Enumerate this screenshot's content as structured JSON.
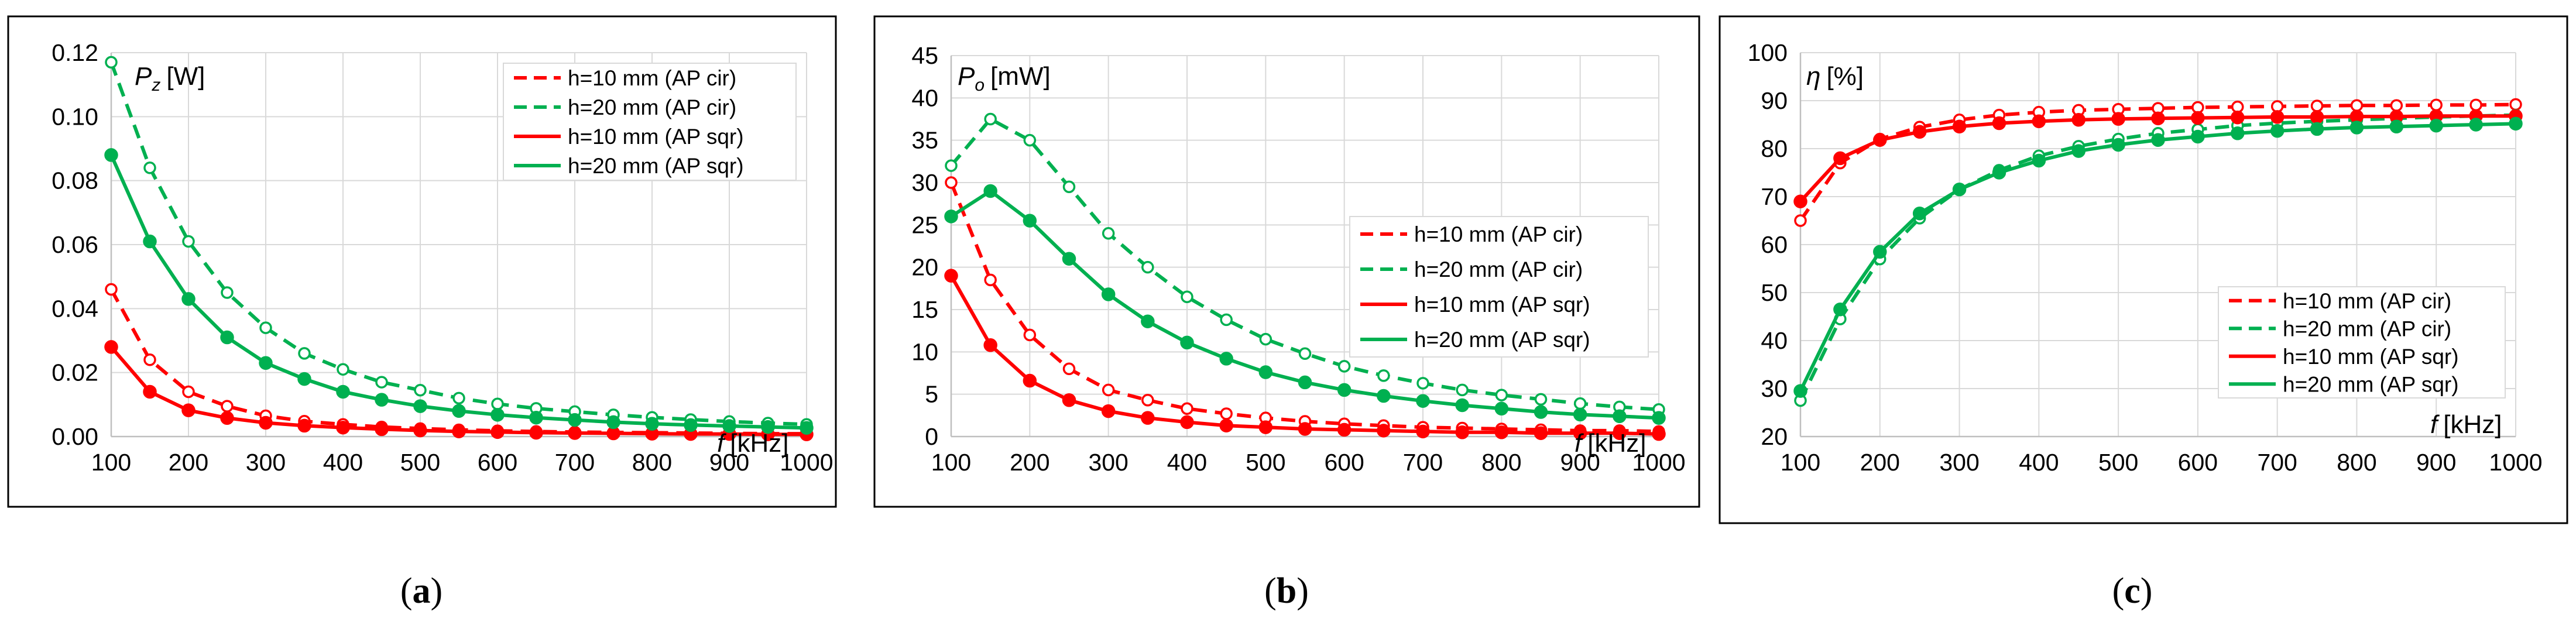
{
  "colors": {
    "red": "#ff0000",
    "green": "#00b050",
    "grid": "#d9d9d9",
    "frame": "#000000"
  },
  "chart_data": [
    {
      "id": "a",
      "type": "line",
      "caption": "(a)",
      "caption_parts": [
        "(",
        "a",
        ")"
      ],
      "ylabel": {
        "symbol": "P",
        "sub": "z",
        "unit": "[W]"
      },
      "xlabel": {
        "symbol": "f",
        "unit": "[kHz]"
      },
      "x_ticks": [
        "100",
        "200",
        "300",
        "400",
        "500",
        "600",
        "700",
        "800",
        "900",
        "1000"
      ],
      "y_ticks": [
        "0.00",
        "0.02",
        "0.04",
        "0.06",
        "0.08",
        "0.10",
        "0.12"
      ],
      "xlim": [
        100,
        1000
      ],
      "ylim": [
        0,
        0.12
      ],
      "legend_position": "top-right",
      "x": [
        100,
        150,
        200,
        250,
        300,
        350,
        400,
        450,
        500,
        550,
        600,
        650,
        700,
        750,
        800,
        850,
        900,
        950,
        1000
      ],
      "series": [
        {
          "name": "h=10 mm (AP cir)",
          "color": "red",
          "style": "dashed",
          "marker": "open",
          "values": [
            0.046,
            0.024,
            0.014,
            0.0095,
            0.0065,
            0.0048,
            0.0038,
            0.003,
            0.0025,
            0.0021,
            0.0018,
            0.0016,
            0.0014,
            0.0013,
            0.0012,
            0.0011,
            0.001,
            0.0009,
            0.0009
          ]
        },
        {
          "name": "h=20 mm (AP cir)",
          "color": "green",
          "style": "dashed",
          "marker": "open",
          "values": [
            0.117,
            0.084,
            0.061,
            0.045,
            0.034,
            0.026,
            0.021,
            0.017,
            0.0145,
            0.012,
            0.0102,
            0.0088,
            0.0078,
            0.0068,
            0.006,
            0.0053,
            0.0047,
            0.0042,
            0.0038
          ]
        },
        {
          "name": "h=10 mm (AP sqr)",
          "color": "red",
          "style": "solid",
          "marker": "filled",
          "values": [
            0.028,
            0.014,
            0.0082,
            0.0058,
            0.0043,
            0.0034,
            0.0028,
            0.0023,
            0.0019,
            0.0016,
            0.0014,
            0.0012,
            0.0011,
            0.001,
            0.0009,
            0.0008,
            0.0008,
            0.0007,
            0.0007
          ]
        },
        {
          "name": "h=20 mm (AP sqr)",
          "color": "green",
          "style": "solid",
          "marker": "filled",
          "values": [
            0.088,
            0.061,
            0.043,
            0.031,
            0.023,
            0.018,
            0.014,
            0.0115,
            0.0095,
            0.008,
            0.0068,
            0.0059,
            0.0052,
            0.0045,
            0.004,
            0.0036,
            0.0033,
            0.003,
            0.0027
          ]
        }
      ]
    },
    {
      "id": "b",
      "type": "line",
      "caption": "(b)",
      "caption_parts": [
        "(",
        "b",
        ")"
      ],
      "ylabel": {
        "symbol": "P",
        "sub": "o",
        "unit": "[mW]"
      },
      "xlabel": {
        "symbol": "f",
        "unit": "[kHz]"
      },
      "x_ticks": [
        "100",
        "200",
        "300",
        "400",
        "500",
        "600",
        "700",
        "800",
        "900",
        "1000"
      ],
      "y_ticks": [
        "0",
        "5",
        "10",
        "15",
        "20",
        "25",
        "30",
        "35",
        "40",
        "45"
      ],
      "xlim": [
        100,
        1000
      ],
      "ylim": [
        0,
        45
      ],
      "legend_position": "center-right",
      "x": [
        100,
        150,
        200,
        250,
        300,
        350,
        400,
        450,
        500,
        550,
        600,
        650,
        700,
        750,
        800,
        850,
        900,
        950,
        1000
      ],
      "series": [
        {
          "name": "h=10 mm (AP cir)",
          "color": "red",
          "style": "dashed",
          "marker": "open",
          "values": [
            30,
            18.5,
            12,
            8,
            5.5,
            4.3,
            3.3,
            2.7,
            2.2,
            1.8,
            1.5,
            1.3,
            1.1,
            1,
            0.9,
            0.8,
            0.7,
            0.7,
            0.6
          ]
        },
        {
          "name": "h=20 mm (AP cir)",
          "color": "green",
          "style": "dashed",
          "marker": "open",
          "values": [
            32,
            37.5,
            35,
            29.5,
            24,
            20,
            16.5,
            13.8,
            11.5,
            9.8,
            8.3,
            7.2,
            6.3,
            5.5,
            4.9,
            4.4,
            3.9,
            3.5,
            3.2
          ]
        },
        {
          "name": "h=10 mm (AP sqr)",
          "color": "red",
          "style": "solid",
          "marker": "filled",
          "values": [
            19,
            10.8,
            6.6,
            4.3,
            3,
            2.2,
            1.7,
            1.3,
            1.1,
            0.9,
            0.8,
            0.7,
            0.6,
            0.5,
            0.5,
            0.4,
            0.4,
            0.4,
            0.3
          ]
        },
        {
          "name": "h=20 mm (AP sqr)",
          "color": "green",
          "style": "solid",
          "marker": "filled",
          "values": [
            26,
            29,
            25.5,
            21,
            16.8,
            13.6,
            11.1,
            9.2,
            7.6,
            6.4,
            5.5,
            4.8,
            4.2,
            3.7,
            3.3,
            2.9,
            2.6,
            2.4,
            2.2
          ]
        }
      ]
    },
    {
      "id": "c",
      "type": "line",
      "caption": "(c)",
      "caption_parts": [
        "(",
        "c",
        ")"
      ],
      "ylabel": {
        "symbol": "η",
        "sub": "",
        "unit": "[%]"
      },
      "xlabel": {
        "symbol": "f",
        "unit": "[kHz]"
      },
      "x_ticks": [
        "100",
        "200",
        "300",
        "400",
        "500",
        "600",
        "700",
        "800",
        "900",
        "1000"
      ],
      "y_ticks": [
        "20",
        "30",
        "40",
        "50",
        "60",
        "70",
        "80",
        "90",
        "100"
      ],
      "xlim": [
        100,
        1000
      ],
      "ylim": [
        20,
        100
      ],
      "legend_position": "bottom-right",
      "x": [
        100,
        150,
        200,
        250,
        300,
        350,
        400,
        450,
        500,
        550,
        600,
        650,
        700,
        750,
        800,
        850,
        900,
        950,
        1000
      ],
      "series": [
        {
          "name": "h=10 mm (AP cir)",
          "color": "red",
          "style": "dashed",
          "marker": "open",
          "values": [
            65,
            77,
            82,
            84.5,
            86,
            87,
            87.6,
            88,
            88.2,
            88.4,
            88.6,
            88.7,
            88.8,
            88.9,
            89,
            89,
            89.1,
            89.1,
            89.2
          ]
        },
        {
          "name": "h=20 mm (AP cir)",
          "color": "green",
          "style": "dashed",
          "marker": "open",
          "values": [
            27.5,
            44.5,
            57,
            65.5,
            71.5,
            75.5,
            78.5,
            80.5,
            82,
            83.2,
            84,
            84.8,
            85.3,
            85.7,
            86,
            86.3,
            86.6,
            86.8,
            87
          ]
        },
        {
          "name": "h=10 mm (AP sqr)",
          "color": "red",
          "style": "solid",
          "marker": "filled",
          "values": [
            69,
            78,
            81.8,
            83.5,
            84.6,
            85.3,
            85.7,
            86,
            86.2,
            86.3,
            86.4,
            86.5,
            86.6,
            86.6,
            86.7,
            86.7,
            86.8,
            86.8,
            86.8
          ]
        },
        {
          "name": "h=20 mm (AP sqr)",
          "color": "green",
          "style": "solid",
          "marker": "filled",
          "values": [
            29.5,
            46.5,
            58.5,
            66.5,
            71.5,
            75,
            77.5,
            79.5,
            80.8,
            81.8,
            82.5,
            83.2,
            83.7,
            84.1,
            84.4,
            84.6,
            84.8,
            85,
            85.2
          ]
        }
      ]
    }
  ]
}
